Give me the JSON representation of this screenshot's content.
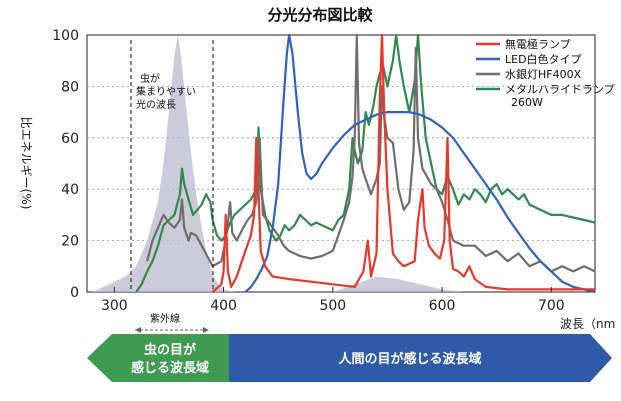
{
  "chart_data": {
    "type": "line",
    "title": "分光分布図比較",
    "xlabel": "波長（nm",
    "ylabel": "比エネルギー(%)",
    "xlim": [
      275,
      740
    ],
    "ylim": [
      0,
      100
    ],
    "xticks": [
      "300",
      "400",
      "500",
      "600",
      "700"
    ],
    "yticks": [
      "0",
      "20",
      "40",
      "60",
      "80",
      "100"
    ],
    "legend_position": "top-right",
    "grid": "dotted horizontal",
    "series": [
      {
        "name": "無電極ランプ",
        "color": "#e8382c",
        "points": [
          [
            390,
            0
          ],
          [
            398,
            3
          ],
          [
            400,
            8
          ],
          [
            402,
            30
          ],
          [
            404,
            8
          ],
          [
            407,
            2
          ],
          [
            412,
            6
          ],
          [
            420,
            16
          ],
          [
            425,
            22
          ],
          [
            428,
            30
          ],
          [
            430,
            60
          ],
          [
            432,
            40
          ],
          [
            434,
            16
          ],
          [
            438,
            10
          ],
          [
            445,
            6
          ],
          [
            460,
            5
          ],
          [
            480,
            4
          ],
          [
            500,
            3
          ],
          [
            520,
            2
          ],
          [
            528,
            8
          ],
          [
            532,
            20
          ],
          [
            535,
            6
          ],
          [
            540,
            15
          ],
          [
            543,
            75
          ],
          [
            545,
            100
          ],
          [
            547,
            70
          ],
          [
            550,
            40
          ],
          [
            555,
            15
          ],
          [
            560,
            12
          ],
          [
            565,
            10
          ],
          [
            570,
            11
          ],
          [
            575,
            12
          ],
          [
            578,
            28
          ],
          [
            582,
            40
          ],
          [
            584,
            25
          ],
          [
            588,
            18
          ],
          [
            593,
            15
          ],
          [
            598,
            13
          ],
          [
            602,
            20
          ],
          [
            605,
            60
          ],
          [
            607,
            20
          ],
          [
            610,
            9
          ],
          [
            615,
            8
          ],
          [
            620,
            6
          ],
          [
            625,
            10
          ],
          [
            630,
            5
          ],
          [
            640,
            2
          ],
          [
            660,
            1
          ],
          [
            700,
            1
          ],
          [
            740,
            1
          ]
        ]
      },
      {
        "name": "LED白色タイプ",
        "color": "#2f62c0",
        "points": [
          [
            420,
            0
          ],
          [
            425,
            2
          ],
          [
            430,
            5
          ],
          [
            435,
            9
          ],
          [
            440,
            14
          ],
          [
            445,
            25
          ],
          [
            450,
            42
          ],
          [
            455,
            75
          ],
          [
            458,
            93
          ],
          [
            460,
            100
          ],
          [
            463,
            93
          ],
          [
            468,
            70
          ],
          [
            472,
            54
          ],
          [
            476,
            46
          ],
          [
            480,
            44
          ],
          [
            485,
            46
          ],
          [
            490,
            50
          ],
          [
            500,
            56
          ],
          [
            510,
            61
          ],
          [
            520,
            65
          ],
          [
            530,
            67
          ],
          [
            540,
            69
          ],
          [
            550,
            70
          ],
          [
            560,
            70
          ],
          [
            570,
            70
          ],
          [
            580,
            69
          ],
          [
            590,
            67
          ],
          [
            600,
            64
          ],
          [
            610,
            60
          ],
          [
            620,
            54
          ],
          [
            630,
            48
          ],
          [
            640,
            42
          ],
          [
            650,
            36
          ],
          [
            660,
            29
          ],
          [
            670,
            23
          ],
          [
            680,
            17
          ],
          [
            690,
            12
          ],
          [
            700,
            8
          ],
          [
            710,
            4
          ],
          [
            720,
            2
          ],
          [
            740,
            0
          ]
        ]
      },
      {
        "name": "水銀灯HF400X",
        "color": "#6e6e6e",
        "points": [
          [
            330,
            12
          ],
          [
            335,
            20
          ],
          [
            340,
            25
          ],
          [
            345,
            30
          ],
          [
            350,
            27
          ],
          [
            355,
            25
          ],
          [
            360,
            28
          ],
          [
            362,
            36
          ],
          [
            364,
            25
          ],
          [
            368,
            20
          ],
          [
            370,
            23
          ],
          [
            375,
            22
          ],
          [
            380,
            18
          ],
          [
            385,
            14
          ],
          [
            390,
            10
          ],
          [
            398,
            12
          ],
          [
            402,
            20
          ],
          [
            404,
            27
          ],
          [
            406,
            35
          ],
          [
            408,
            23
          ],
          [
            412,
            20
          ],
          [
            418,
            25
          ],
          [
            422,
            28
          ],
          [
            426,
            30
          ],
          [
            430,
            35
          ],
          [
            433,
            60
          ],
          [
            436,
            30
          ],
          [
            440,
            28
          ],
          [
            445,
            25
          ],
          [
            450,
            22
          ],
          [
            455,
            18
          ],
          [
            460,
            16
          ],
          [
            470,
            14
          ],
          [
            480,
            13
          ],
          [
            490,
            14
          ],
          [
            500,
            16
          ],
          [
            505,
            22
          ],
          [
            510,
            28
          ],
          [
            515,
            35
          ],
          [
            518,
            45
          ],
          [
            520,
            60
          ],
          [
            522,
            100
          ],
          [
            524,
            58
          ],
          [
            527,
            48
          ],
          [
            530,
            44
          ],
          [
            535,
            38
          ],
          [
            540,
            44
          ],
          [
            543,
            50
          ],
          [
            545,
            80
          ],
          [
            547,
            68
          ],
          [
            550,
            60
          ],
          [
            555,
            58
          ],
          [
            560,
            40
          ],
          [
            565,
            32
          ],
          [
            570,
            35
          ],
          [
            574,
            55
          ],
          [
            576,
            95
          ],
          [
            578,
            60
          ],
          [
            582,
            48
          ],
          [
            586,
            45
          ],
          [
            590,
            42
          ],
          [
            595,
            40
          ],
          [
            600,
            35
          ],
          [
            605,
            28
          ],
          [
            610,
            20
          ],
          [
            620,
            18
          ],
          [
            630,
            18
          ],
          [
            640,
            14
          ],
          [
            650,
            16
          ],
          [
            660,
            12
          ],
          [
            670,
            15
          ],
          [
            680,
            10
          ],
          [
            690,
            12
          ],
          [
            700,
            8
          ],
          [
            710,
            10
          ],
          [
            720,
            8
          ],
          [
            730,
            10
          ],
          [
            740,
            8
          ]
        ]
      },
      {
        "name": "メタルハライドランプ 260W",
        "color": "#2f8a4e",
        "points": [
          [
            320,
            0
          ],
          [
            325,
            3
          ],
          [
            330,
            8
          ],
          [
            335,
            12
          ],
          [
            340,
            18
          ],
          [
            345,
            26
          ],
          [
            350,
            28
          ],
          [
            355,
            30
          ],
          [
            360,
            38
          ],
          [
            362,
            48
          ],
          [
            364,
            42
          ],
          [
            368,
            36
          ],
          [
            372,
            30
          ],
          [
            376,
            32
          ],
          [
            380,
            34
          ],
          [
            384,
            38
          ],
          [
            388,
            35
          ],
          [
            390,
            28
          ],
          [
            394,
            22
          ],
          [
            398,
            20
          ],
          [
            402,
            22
          ],
          [
            405,
            26
          ],
          [
            410,
            30
          ],
          [
            415,
            32
          ],
          [
            420,
            34
          ],
          [
            425,
            36
          ],
          [
            430,
            40
          ],
          [
            432,
            64
          ],
          [
            434,
            40
          ],
          [
            438,
            30
          ],
          [
            442,
            24
          ],
          [
            448,
            20
          ],
          [
            452,
            22
          ],
          [
            456,
            26
          ],
          [
            460,
            24
          ],
          [
            465,
            26
          ],
          [
            470,
            30
          ],
          [
            475,
            28
          ],
          [
            480,
            26
          ],
          [
            485,
            27
          ],
          [
            490,
            26
          ],
          [
            495,
            25
          ],
          [
            500,
            24
          ],
          [
            505,
            28
          ],
          [
            510,
            30
          ],
          [
            515,
            40
          ],
          [
            518,
            60
          ],
          [
            520,
            55
          ],
          [
            523,
            50
          ],
          [
            527,
            55
          ],
          [
            530,
            70
          ],
          [
            533,
            65
          ],
          [
            537,
            72
          ],
          [
            540,
            80
          ],
          [
            543,
            85
          ],
          [
            546,
            88
          ],
          [
            550,
            80
          ],
          [
            555,
            90
          ],
          [
            558,
            100
          ],
          [
            561,
            90
          ],
          [
            565,
            80
          ],
          [
            570,
            70
          ],
          [
            575,
            82
          ],
          [
            578,
            100
          ],
          [
            581,
            80
          ],
          [
            585,
            60
          ],
          [
            590,
            50
          ],
          [
            595,
            40
          ],
          [
            600,
            38
          ],
          [
            605,
            45
          ],
          [
            610,
            40
          ],
          [
            615,
            34
          ],
          [
            620,
            38
          ],
          [
            625,
            36
          ],
          [
            630,
            40
          ],
          [
            635,
            38
          ],
          [
            640,
            35
          ],
          [
            645,
            40
          ],
          [
            650,
            42
          ],
          [
            655,
            38
          ],
          [
            660,
            40
          ],
          [
            665,
            38
          ],
          [
            670,
            36
          ],
          [
            675,
            38
          ],
          [
            680,
            34
          ],
          [
            690,
            32
          ],
          [
            700,
            30
          ],
          [
            710,
            30
          ],
          [
            720,
            29
          ],
          [
            730,
            28
          ],
          [
            740,
            27
          ]
        ]
      },
      {
        "name": "insect-sensitivity",
        "color": "#b9b9cc",
        "points": [
          [
            280,
            0
          ],
          [
            290,
            2
          ],
          [
            300,
            4
          ],
          [
            310,
            6
          ],
          [
            320,
            10
          ],
          [
            330,
            20
          ],
          [
            340,
            35
          ],
          [
            345,
            50
          ],
          [
            350,
            70
          ],
          [
            355,
            92
          ],
          [
            358,
            100
          ],
          [
            361,
            92
          ],
          [
            365,
            75
          ],
          [
            370,
            55
          ],
          [
            375,
            38
          ],
          [
            380,
            25
          ],
          [
            385,
            14
          ],
          [
            390,
            7
          ],
          [
            395,
            3
          ],
          [
            400,
            1
          ],
          [
            410,
            0
          ],
          [
            500,
            0
          ],
          [
            520,
            3
          ],
          [
            540,
            6
          ],
          [
            560,
            5
          ],
          [
            580,
            3
          ],
          [
            600,
            1
          ],
          [
            620,
            0
          ]
        ]
      }
    ]
  },
  "annotations": {
    "peak_note": [
      "虫が",
      "集まりやすい",
      "光の波長"
    ],
    "uv_label": "紫外線"
  },
  "bottom_arrows": {
    "insect_label": [
      "虫の目が",
      "感じる波長域"
    ],
    "human_label": "人間の目が感じる波長域",
    "insect_color": "#3f9a52",
    "human_color": "#2e5aa8"
  }
}
